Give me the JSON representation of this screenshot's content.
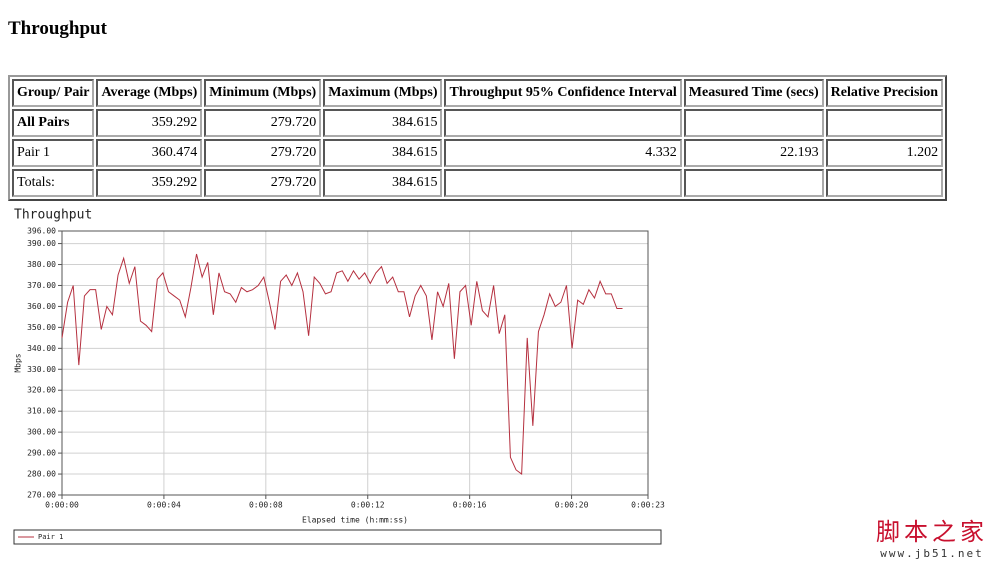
{
  "title": "Throughput",
  "table": {
    "headers": [
      "Group/ Pair",
      "Average (Mbps)",
      "Minimum (Mbps)",
      "Maximum (Mbps)",
      "Throughput 95% Confidence Interval",
      "Measured Time (secs)",
      "Relative Precision"
    ],
    "rows": [
      [
        "All Pairs",
        "359.292",
        "279.720",
        "384.615",
        null,
        null,
        null
      ],
      [
        "Pair 1",
        "360.474",
        "279.720",
        "384.615",
        "4.332",
        "22.193",
        "1.202"
      ],
      [
        "Totals:",
        "359.292",
        "279.720",
        "384.615",
        null,
        null,
        null
      ]
    ]
  },
  "chart_data": {
    "type": "line",
    "title": "Throughput",
    "x_label": "Elapsed time (h:mm:ss)",
    "y_label": "Mbps",
    "xlim": [
      0,
      23
    ],
    "xticks": [
      {
        "value": 0,
        "label": "0:00:00"
      },
      {
        "value": 4,
        "label": "0:00:04"
      },
      {
        "value": 8,
        "label": "0:00:08"
      },
      {
        "value": 12,
        "label": "0:00:12"
      },
      {
        "value": 16,
        "label": "0:00:16"
      },
      {
        "value": 20,
        "label": "0:00:20"
      },
      {
        "value": 23,
        "label": "0:00:23"
      }
    ],
    "ylim": [
      270,
      396
    ],
    "yticks": [
      {
        "value": 270,
        "label": "270.00"
      },
      {
        "value": 280,
        "label": "280.00"
      },
      {
        "value": 290,
        "label": "290.00"
      },
      {
        "value": 300,
        "label": "300.00"
      },
      {
        "value": 310,
        "label": "310.00"
      },
      {
        "value": 320,
        "label": "320.00"
      },
      {
        "value": 330,
        "label": "330.00"
      },
      {
        "value": 340,
        "label": "340.00"
      },
      {
        "value": 350,
        "label": "350.00"
      },
      {
        "value": 360,
        "label": "360.00"
      },
      {
        "value": 370,
        "label": "370.00"
      },
      {
        "value": 380,
        "label": "380.00"
      },
      {
        "value": 390,
        "label": "390.00"
      },
      {
        "value": 396,
        "label": "396.00"
      }
    ],
    "grid": true,
    "legend": "bottom",
    "x": [
      0,
      0.22,
      0.44,
      0.66,
      0.88,
      1.1,
      1.32,
      1.54,
      1.76,
      1.98,
      2.2,
      2.42,
      2.64,
      2.86,
      3.08,
      3.3,
      3.52,
      3.74,
      3.96,
      4.18,
      4.4,
      4.62,
      4.84,
      5.06,
      5.28,
      5.5,
      5.72,
      5.94,
      6.16,
      6.38,
      6.6,
      6.82,
      7.04,
      7.26,
      7.48,
      7.7,
      7.92,
      8.14,
      8.36,
      8.58,
      8.8,
      9.02,
      9.24,
      9.46,
      9.68,
      9.9,
      10.12,
      10.34,
      10.56,
      10.78,
      11,
      11.22,
      11.44,
      11.66,
      11.88,
      12.1,
      12.32,
      12.54,
      12.76,
      12.98,
      13.2,
      13.42,
      13.64,
      13.86,
      14.08,
      14.3,
      14.52,
      14.74,
      14.96,
      15.18,
      15.4,
      15.62,
      15.84,
      16.06,
      16.28,
      16.5,
      16.72,
      16.94,
      17.16,
      17.38,
      17.6,
      17.82,
      18.04,
      18.26,
      18.48,
      18.7,
      18.92,
      19.14,
      19.36,
      19.58,
      19.8,
      20.02,
      20.24,
      20.46,
      20.68,
      20.9,
      21.12,
      21.34,
      21.56,
      21.78,
      22
    ],
    "series": [
      {
        "name": "Pair 1",
        "color": "#b5303f",
        "values": [
          345,
          362,
          370,
          332,
          365,
          368,
          368,
          349,
          360,
          356,
          375,
          383,
          371,
          379,
          353,
          351,
          348,
          373,
          376,
          367,
          365,
          363,
          355,
          369,
          385,
          374,
          381,
          356,
          376,
          367,
          366,
          362,
          369,
          367,
          368,
          370,
          374,
          362,
          349,
          372,
          375,
          370,
          376,
          367,
          346,
          374,
          371,
          366,
          367,
          376,
          377,
          372,
          377,
          373,
          376,
          371,
          376,
          379,
          371,
          374,
          367,
          367,
          355,
          365,
          370,
          365,
          344,
          367,
          360,
          371,
          335,
          367,
          370,
          351,
          372,
          358,
          355,
          370,
          347,
          356,
          288,
          282,
          280,
          345,
          303,
          348,
          356,
          366,
          360,
          362,
          370,
          340,
          363,
          361,
          368,
          364,
          372,
          366,
          366,
          359,
          359
        ]
      }
    ]
  },
  "watermark": {
    "name": "脚本之家",
    "url": "www.jb51.net"
  }
}
